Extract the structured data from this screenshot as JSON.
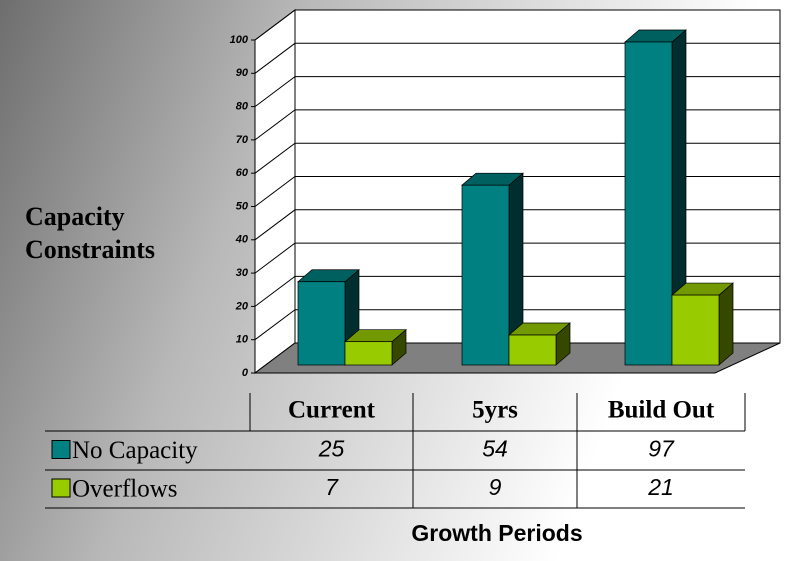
{
  "chart_data": {
    "type": "bar3d",
    "y_axis_title": "Capacity Constraints",
    "x_axis_title": "Growth Periods",
    "categories": [
      "Current",
      "5yrs",
      "Build Out"
    ],
    "series": [
      {
        "name": "No Capacity",
        "color": "#008080",
        "values": [
          25,
          54,
          97
        ]
      },
      {
        "name": "Overflows",
        "color": "#99cc00",
        "values": [
          7,
          9,
          21
        ]
      }
    ],
    "ylim": [
      0,
      100
    ],
    "yticks": [
      0,
      10,
      20,
      30,
      40,
      50,
      60,
      70,
      80,
      90,
      100
    ],
    "grid": true,
    "data_table": true
  }
}
